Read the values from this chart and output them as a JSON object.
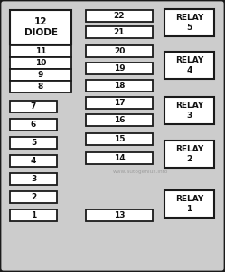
{
  "bg_color": "#cccccc",
  "box_color": "#ffffff",
  "box_edge": "#1a1a1a",
  "text_color": "#111111",
  "watermark": "www.autogenius.info",
  "watermark_color": "#999999",
  "left_top_label": "12\nDIODE",
  "left_top_subrows": [
    "11",
    "10",
    "9",
    "8"
  ],
  "left_singles": [
    "7",
    "6",
    "5",
    "4",
    "3",
    "2",
    "1"
  ],
  "center_fuses": [
    "22",
    "21",
    "20",
    "19",
    "18",
    "17",
    "16",
    "15",
    "14",
    "13"
  ],
  "relay_labels": [
    "RELAY\n5",
    "RELAY\n4",
    "RELAY\n3",
    "RELAY\n2",
    "RELAY\n1"
  ],
  "fig_w": 2.49,
  "fig_h": 3.0,
  "dpi": 100
}
